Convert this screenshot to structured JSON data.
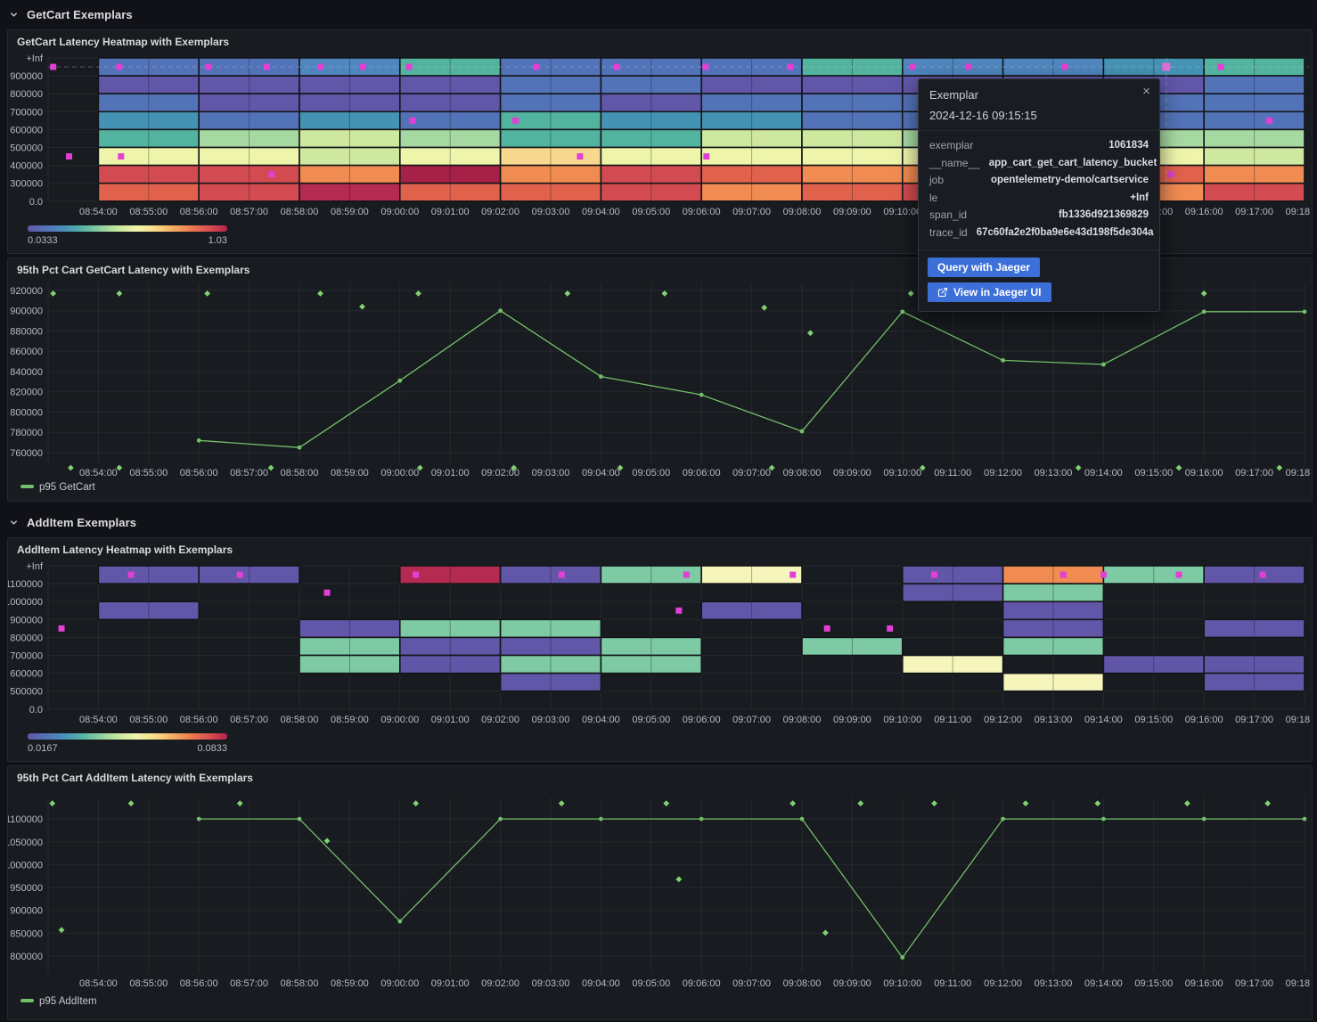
{
  "sections": [
    {
      "title": "GetCart Exemplars"
    },
    {
      "title": "AddItem Exemplars"
    }
  ],
  "tooltip": {
    "title": "Exemplar",
    "close_glyph": "×",
    "timestamp": "2024-12-16 09:15:15",
    "rows": [
      {
        "label": "exemplar",
        "value": "1061834"
      },
      {
        "label": "__name__",
        "value": "app_cart_get_cart_latency_bucket"
      },
      {
        "label": "job",
        "value": "opentelemetry-demo/cartservice"
      },
      {
        "label": "le",
        "value": "+Inf"
      },
      {
        "label": "span_id",
        "value": "fb1336d921369829"
      },
      {
        "label": "trace_id",
        "value": "67c60fa2e2f0ba9e6e43d198f5de304a"
      }
    ],
    "buttons": [
      {
        "label": "Query with Jaeger"
      },
      {
        "label": "View in Jaeger UI",
        "icon": "external-link-icon"
      }
    ]
  },
  "colors": {
    "page_bg": "#111217",
    "panel_bg": "#181b1f",
    "panel_border": "#25282e",
    "text_primary": "#d8d9dd",
    "text_tick": "#b8bac4",
    "grid_line": "rgba(204,204,220,0.08)",
    "accent_blue": "#3d6fd9",
    "series_green": "#73bf69",
    "exemplar_green": "#7fd36f",
    "exemplar": "#e33fd6",
    "exemplar_highlight": "#e06fd8",
    "spectral": [
      "#6257a5",
      "#5273b8",
      "#4a90bb",
      "#55b3a5",
      "#8ed0a0",
      "#c8e8a0",
      "#f2f5a9",
      "#f9dd8c",
      "#f5ae62",
      "#ec7b50",
      "#d9504f",
      "#b2224c"
    ],
    "heatmap_palette": {
      "P": "#6156a8",
      "B": "#5373b8",
      "LB": "#4e86bd",
      "TB": "#4593b4",
      "T": "#52b39e",
      "G": "#a6d9a2",
      "MG": "#7ecaa4",
      "YG": "#cfe8a0",
      "Y": "#eef5aa",
      "CY": "#f6f5bc",
      "PE": "#f8d78e",
      "O": "#f08b51",
      "RO": "#e0624d",
      "R": "#d24b51",
      "C": "#b42a50",
      "DC": "#a52147"
    }
  },
  "chart_data": [
    {
      "id": "getcart_heatmap",
      "type": "heatmap",
      "title": "GetCart Latency Heatmap with Exemplars",
      "x_start": "08:53:00",
      "x_end": "09:18:00",
      "x_tick_labels": [
        "08:54:00",
        "08:55:00",
        "08:56:00",
        "08:57:00",
        "08:58:00",
        "08:59:00",
        "09:00:00",
        "09:01:00",
        "09:02:00",
        "09:03:00",
        "09:04:00",
        "09:05:00",
        "09:06:00",
        "09:07:00",
        "09:08:00",
        "09:09:00",
        "09:10:00",
        "09:11:00",
        "09:12:00",
        "09:13:00",
        "09:14:00",
        "09:15:00",
        "09:16:00",
        "09:17:00",
        "09:18:00"
      ],
      "y_tick_labels": [
        "+Inf",
        "900000",
        "800000",
        "700000",
        "600000",
        "500000",
        "400000",
        "300000",
        "0.0"
      ],
      "col_start_minute": 1,
      "col_minutes": 2,
      "rows": [
        [
          "B",
          "B",
          "LB",
          "T",
          "B",
          "B",
          "B",
          "T",
          "LB",
          "LB",
          "TB",
          "T"
        ],
        [
          "P",
          "P",
          "P",
          "P",
          "B",
          "B",
          "P",
          "P",
          "P",
          "P",
          "P",
          "B"
        ],
        [
          "B",
          "P",
          "P",
          "P",
          "B",
          "P",
          "B",
          "B",
          "B",
          "B",
          "B",
          "B"
        ],
        [
          "TB",
          "B",
          "TB",
          "B",
          "T",
          "TB",
          "TB",
          "B",
          "B",
          "B",
          "B",
          "B"
        ],
        [
          "T",
          "G",
          "YG",
          "G",
          "T",
          "T",
          "YG",
          "YG",
          "G",
          "G",
          "G",
          "G"
        ],
        [
          "Y",
          "Y",
          "YG",
          "Y",
          "PE",
          "Y",
          "Y",
          "Y",
          "Y",
          "Y",
          "Y",
          "YG"
        ],
        [
          "R",
          "R",
          "O",
          "DC",
          "O",
          "R",
          "RO",
          "O",
          "O",
          "O",
          "RO",
          "O"
        ],
        [
          "RO",
          "R",
          "C",
          "RO",
          "RO",
          "R",
          "O",
          "RO",
          "R",
          "R",
          "O",
          "R"
        ]
      ],
      "exemplars": [
        {
          "t": "08:53:06",
          "row": 0
        },
        {
          "t": "08:54:25",
          "row": 0
        },
        {
          "t": "08:56:11",
          "row": 0
        },
        {
          "t": "08:57:21",
          "row": 0
        },
        {
          "t": "08:58:25",
          "row": 0
        },
        {
          "t": "08:59:16",
          "row": 0
        },
        {
          "t": "09:00:11",
          "row": 0
        },
        {
          "t": "09:02:43",
          "row": 0
        },
        {
          "t": "09:04:19",
          "row": 0
        },
        {
          "t": "09:06:05",
          "row": 0
        },
        {
          "t": "09:07:46",
          "row": 0
        },
        {
          "t": "09:10:12",
          "row": 0
        },
        {
          "t": "09:11:19",
          "row": 0
        },
        {
          "t": "09:13:14",
          "row": 0
        },
        {
          "t": "09:16:20",
          "row": 0
        },
        {
          "t": "09:00:15",
          "row": 3
        },
        {
          "t": "09:02:18",
          "row": 3
        },
        {
          "t": "09:17:18",
          "row": 3
        },
        {
          "t": "08:53:25",
          "row": 5
        },
        {
          "t": "08:54:27",
          "row": 5
        },
        {
          "t": "09:03:35",
          "row": 5
        },
        {
          "t": "09:06:06",
          "row": 5
        },
        {
          "t": "08:57:27",
          "row": 6
        },
        {
          "t": "09:15:21",
          "row": 6
        }
      ],
      "highlighted_exemplar": {
        "t": "09:15:15",
        "row": 0
      },
      "crosshair": true,
      "crosshair_t": "09:15:15",
      "legend": {
        "min": "0.0333",
        "max": "1.03"
      }
    },
    {
      "id": "getcart_p95",
      "type": "line",
      "title": "95th Pct Cart GetCart Latency with Exemplars",
      "x_start": "08:53:00",
      "x_end": "09:18:00",
      "x_tick_labels": [
        "08:54:00",
        "08:55:00",
        "08:56:00",
        "08:57:00",
        "08:58:00",
        "08:59:00",
        "09:00:00",
        "09:01:00",
        "09:02:00",
        "09:03:00",
        "09:04:00",
        "09:05:00",
        "09:06:00",
        "09:07:00",
        "09:08:00",
        "09:09:00",
        "09:10:00",
        "09:11:00",
        "09:12:00",
        "09:13:00",
        "09:14:00",
        "09:15:00",
        "09:16:00",
        "09:17:00",
        "09:18:00"
      ],
      "y_ticks": [
        920000,
        900000,
        880000,
        860000,
        840000,
        820000,
        800000,
        780000,
        760000
      ],
      "ylim": [
        749400,
        927000
      ],
      "series": [
        {
          "name": "p95 GetCart",
          "color": "#73bf69",
          "points": [
            [
              "08:56:00",
              772000
            ],
            [
              "08:58:00",
              765000
            ],
            [
              "09:00:00",
              831000
            ],
            [
              "09:02:00",
              900000
            ],
            [
              "09:04:00",
              835000
            ],
            [
              "09:06:00",
              817000
            ],
            [
              "09:08:00",
              781000
            ],
            [
              "09:10:00",
              899000
            ],
            [
              "09:12:00",
              851000
            ],
            [
              "09:14:00",
              847000
            ],
            [
              "09:16:00",
              899000
            ],
            [
              "09:18:00",
              899000
            ]
          ]
        }
      ],
      "exemplars": [
        [
          "08:53:06",
          917000
        ],
        [
          "08:54:25",
          917000
        ],
        [
          "08:56:10",
          917000
        ],
        [
          "08:58:25",
          917000
        ],
        [
          "09:00:22",
          917000
        ],
        [
          "09:03:20",
          917000
        ],
        [
          "09:05:16",
          917000
        ],
        [
          "09:10:10",
          917000
        ],
        [
          "09:13:10",
          917000
        ],
        [
          "09:16:00",
          917000
        ],
        [
          "08:59:15",
          904000
        ],
        [
          "09:07:15",
          903000
        ],
        [
          "09:08:10",
          878000
        ],
        [
          "08:53:27",
          745000
        ],
        [
          "08:54:25",
          745000
        ],
        [
          "08:57:26",
          745000
        ],
        [
          "09:00:24",
          745000
        ],
        [
          "09:02:16",
          745000
        ],
        [
          "09:04:23",
          745000
        ],
        [
          "09:07:24",
          745000
        ],
        [
          "09:10:24",
          745000
        ],
        [
          "09:13:30",
          745000
        ],
        [
          "09:15:30",
          745000
        ],
        [
          "09:17:30",
          745000
        ]
      ]
    },
    {
      "id": "additem_heatmap",
      "type": "heatmap",
      "title": "AddItem Latency Heatmap with Exemplars",
      "x_start": "08:53:00",
      "x_end": "09:18:00",
      "x_tick_labels": [
        "08:54:00",
        "08:55:00",
        "08:56:00",
        "08:57:00",
        "08:58:00",
        "08:59:00",
        "09:00:00",
        "09:01:00",
        "09:02:00",
        "09:03:00",
        "09:04:00",
        "09:05:00",
        "09:06:00",
        "09:07:00",
        "09:08:00",
        "09:09:00",
        "09:10:00",
        "09:11:00",
        "09:12:00",
        "09:13:00",
        "09:14:00",
        "09:15:00",
        "09:16:00",
        "09:17:00",
        "09:18:00"
      ],
      "y_tick_labels": [
        "+Inf",
        "1100000",
        "1000000",
        "900000",
        "800000",
        "700000",
        "600000",
        "500000",
        "0.0"
      ],
      "col_start_minute": 1,
      "col_minutes": 2,
      "rows": [
        [
          "P",
          "P",
          null,
          "C",
          "P",
          "MG",
          "CY",
          null,
          "P",
          "O",
          "MG",
          "P"
        ],
        [
          null,
          null,
          null,
          null,
          null,
          null,
          null,
          null,
          "P",
          "MG",
          null,
          null
        ],
        [
          "P",
          null,
          null,
          null,
          null,
          null,
          "P",
          null,
          null,
          "P",
          null,
          null
        ],
        [
          null,
          null,
          "P",
          "MG",
          "MG",
          null,
          null,
          null,
          null,
          "P",
          null,
          "P"
        ],
        [
          null,
          null,
          "MG",
          "P",
          "P",
          "MG",
          null,
          "MG",
          null,
          "MG",
          null,
          null
        ],
        [
          null,
          null,
          "MG",
          "P",
          "MG",
          "MG",
          null,
          null,
          "CY",
          null,
          "P",
          "P"
        ],
        [
          null,
          null,
          null,
          null,
          "P",
          null,
          null,
          null,
          null,
          "CY",
          null,
          "P"
        ],
        [
          null,
          null,
          null,
          null,
          null,
          null,
          null,
          null,
          null,
          null,
          null,
          null
        ]
      ],
      "exemplars": [
        {
          "t": "08:54:39",
          "row": 0
        },
        {
          "t": "08:56:49",
          "row": 0
        },
        {
          "t": "09:00:19",
          "row": 0
        },
        {
          "t": "09:03:13",
          "row": 0
        },
        {
          "t": "09:05:42",
          "row": 0
        },
        {
          "t": "09:07:49",
          "row": 0
        },
        {
          "t": "09:10:38",
          "row": 0
        },
        {
          "t": "09:13:12",
          "row": 0
        },
        {
          "t": "09:14:00",
          "row": 0
        },
        {
          "t": "09:15:30",
          "row": 0
        },
        {
          "t": "09:17:10",
          "row": 0
        },
        {
          "t": "08:58:33",
          "row": 1
        },
        {
          "t": "09:05:33",
          "row": 2
        },
        {
          "t": "08:53:16",
          "row": 3
        },
        {
          "t": "09:08:30",
          "row": 3
        },
        {
          "t": "09:09:45",
          "row": 3
        }
      ],
      "highlighted_exemplar": null,
      "crosshair": false,
      "legend": {
        "min": "0.0167",
        "max": "0.0833"
      }
    },
    {
      "id": "additem_p95",
      "type": "line",
      "title": "95th Pct Cart AddItem Latency with Exemplars",
      "x_start": "08:53:00",
      "x_end": "09:18:00",
      "x_tick_labels": [
        "08:54:00",
        "08:55:00",
        "08:56:00",
        "08:57:00",
        "08:58:00",
        "08:59:00",
        "09:00:00",
        "09:01:00",
        "09:02:00",
        "09:03:00",
        "09:04:00",
        "09:05:00",
        "09:06:00",
        "09:07:00",
        "09:08:00",
        "09:09:00",
        "09:10:00",
        "09:11:00",
        "09:12:00",
        "09:13:00",
        "09:14:00",
        "09:15:00",
        "09:16:00",
        "09:17:00",
        "09:18:00"
      ],
      "y_ticks": [
        1100000,
        1050000,
        1000000,
        950000,
        900000,
        850000,
        800000
      ],
      "ylim": [
        763000,
        1147000
      ],
      "series": [
        {
          "name": "p95 AddItem",
          "color": "#73bf69",
          "points": [
            [
              "08:56:00",
              1100000
            ],
            [
              "08:58:00",
              1100000
            ],
            [
              "09:00:00",
              876000
            ],
            [
              "09:02:00",
              1100000
            ],
            [
              "09:04:00",
              1100000
            ],
            [
              "09:06:00",
              1100000
            ],
            [
              "09:08:00",
              1100000
            ],
            [
              "09:10:00",
              797000
            ],
            [
              "09:12:00",
              1100000
            ],
            [
              "09:14:00",
              1100000
            ],
            [
              "09:16:00",
              1100000
            ],
            [
              "09:18:00",
              1100000
            ]
          ]
        }
      ],
      "exemplars": [
        [
          "08:53:05",
          1134000
        ],
        [
          "08:54:39",
          1134000
        ],
        [
          "08:56:49",
          1134000
        ],
        [
          "09:00:19",
          1134000
        ],
        [
          "09:03:13",
          1134000
        ],
        [
          "09:05:18",
          1134000
        ],
        [
          "09:07:49",
          1134000
        ],
        [
          "09:09:10",
          1134000
        ],
        [
          "09:10:38",
          1134000
        ],
        [
          "09:12:27",
          1134000
        ],
        [
          "09:13:53",
          1134000
        ],
        [
          "09:15:40",
          1134000
        ],
        [
          "09:17:16",
          1134000
        ],
        [
          "08:53:16",
          857000
        ],
        [
          "08:58:33",
          1052000
        ],
        [
          "09:05:33",
          968000
        ],
        [
          "09:08:28",
          851000
        ]
      ]
    }
  ]
}
